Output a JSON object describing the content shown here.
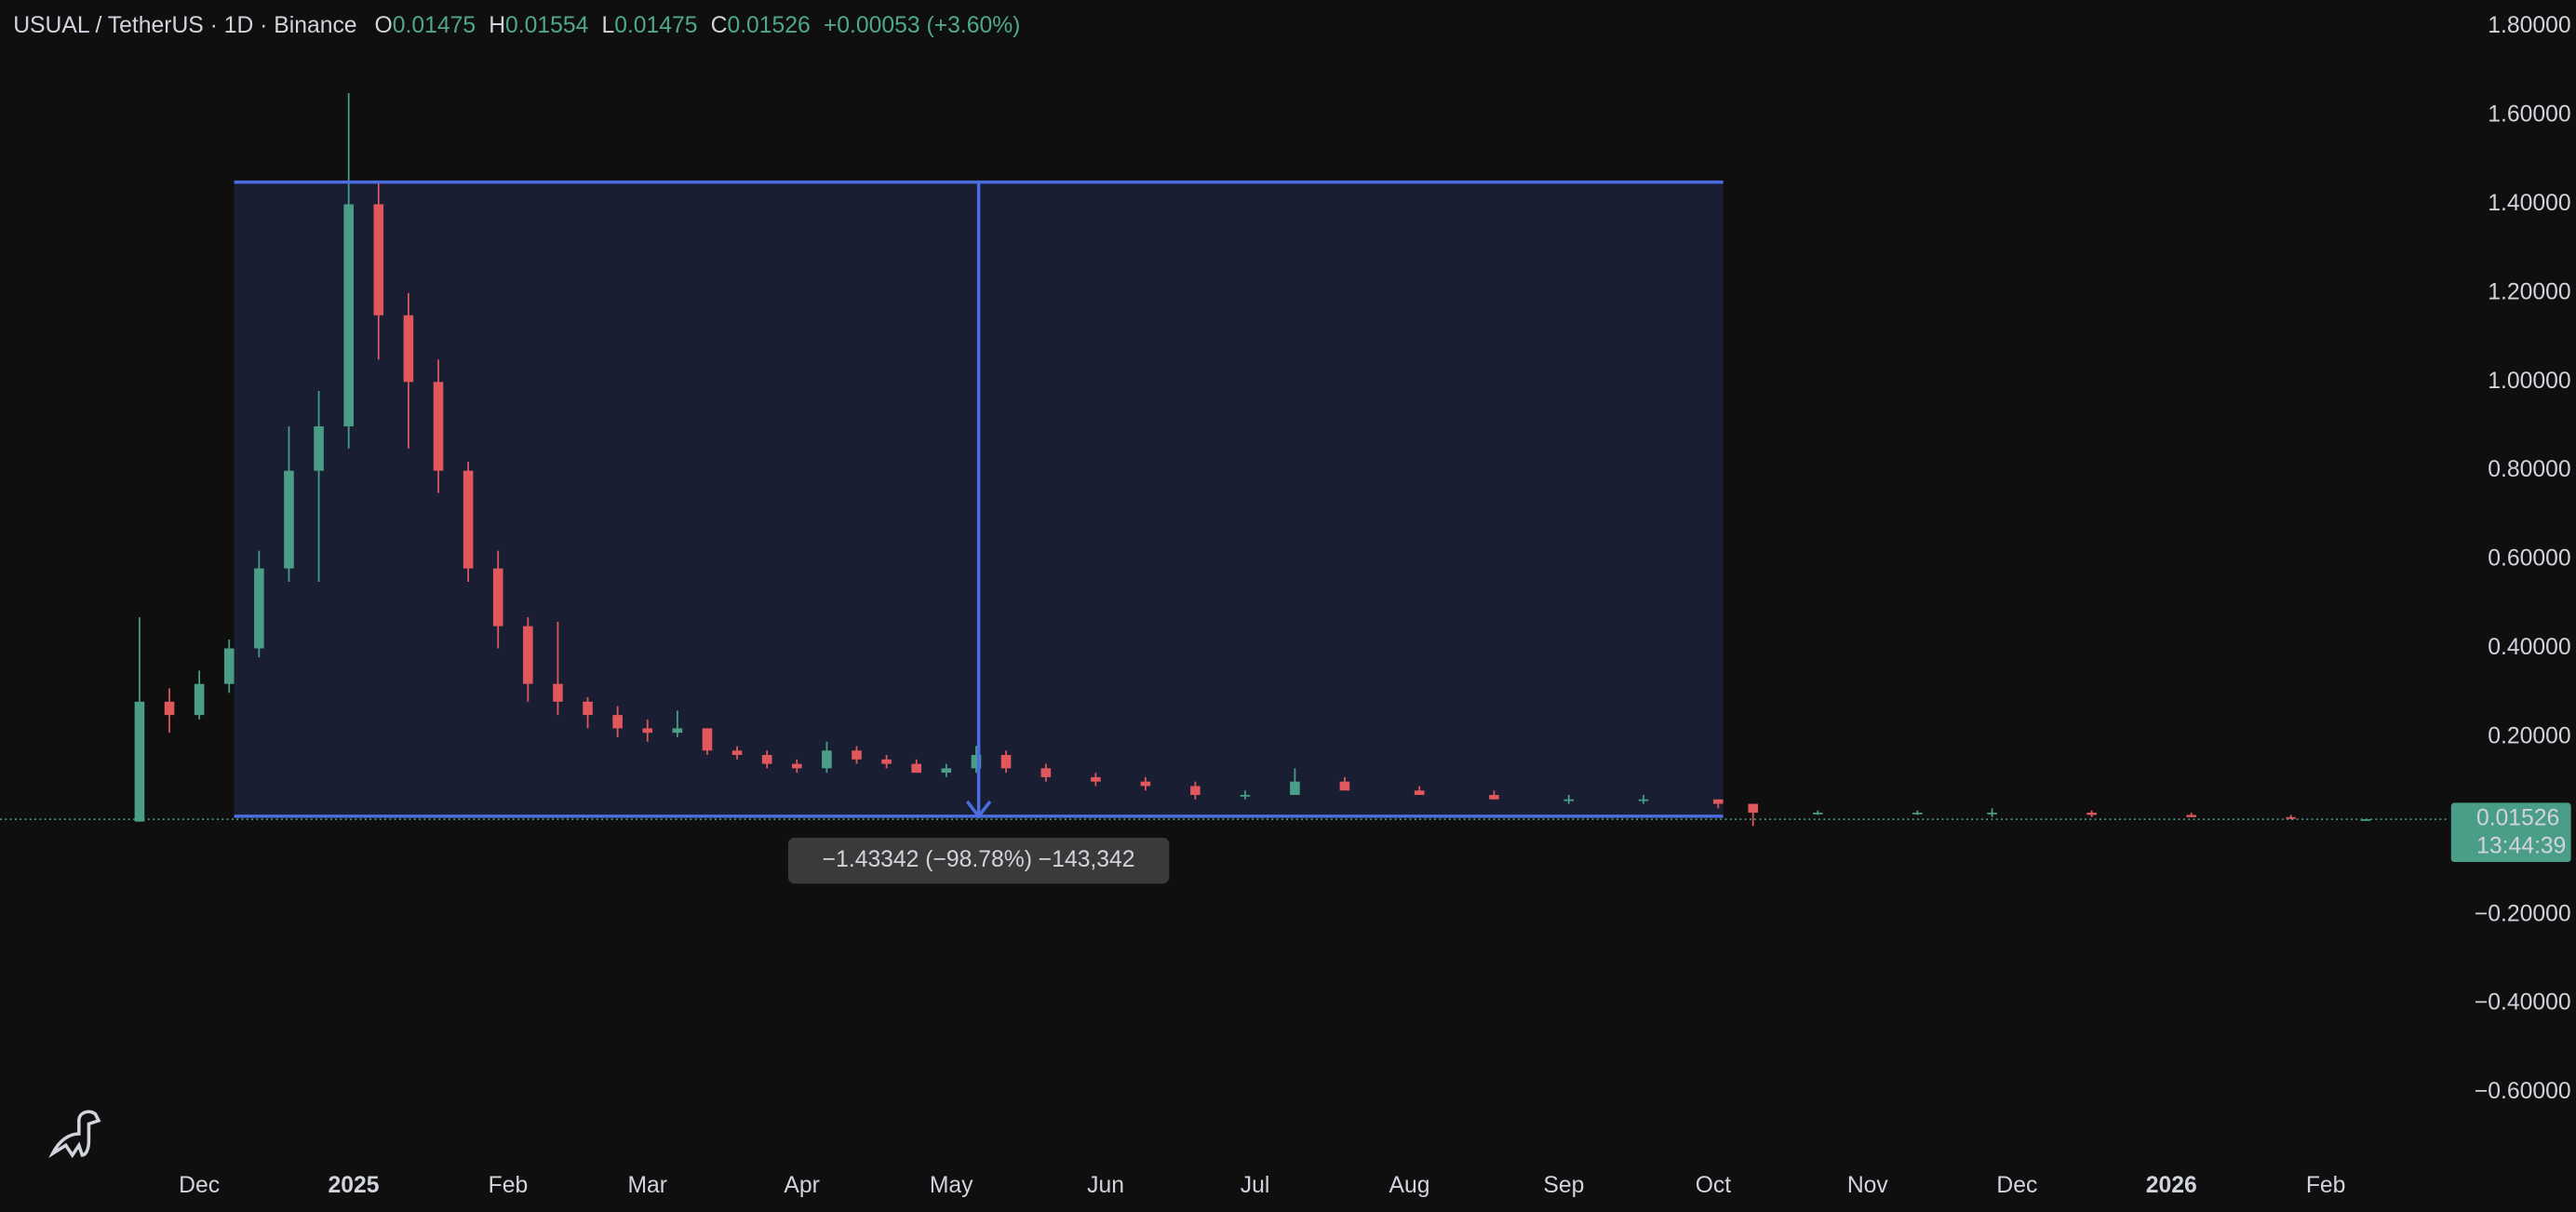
{
  "chart_data": {
    "type": "candlestick",
    "title": "USUAL / TetherUS · 1D · Binance",
    "header": {
      "open_label": "O",
      "open": "0.01475",
      "high_label": "H",
      "high": "0.01554",
      "low_label": "L",
      "low": "0.01475",
      "close_label": "C",
      "close": "0.01526",
      "change": "+0.00053 (+3.60%)"
    },
    "x": [
      -12,
      -6,
      0,
      6,
      12,
      18,
      24,
      30,
      36,
      42,
      48,
      54,
      60,
      66,
      72,
      78,
      84,
      90,
      96,
      102,
      108,
      114,
      120,
      126,
      132,
      138,
      144,
      150,
      156,
      162,
      170,
      180,
      190,
      200,
      210,
      220,
      230,
      245,
      260,
      275,
      290,
      305,
      312,
      325,
      345,
      360,
      380,
      400,
      420,
      435
    ],
    "open": [
      0.01,
      0.28,
      0.25,
      0.32,
      0.4,
      0.58,
      0.8,
      0.9,
      1.4,
      1.15,
      1.0,
      0.8,
      0.58,
      0.45,
      0.32,
      0.28,
      0.25,
      0.22,
      0.21,
      0.22,
      0.17,
      0.16,
      0.14,
      0.13,
      0.17,
      0.15,
      0.14,
      0.12,
      0.13,
      0.16,
      0.13,
      0.11,
      0.1,
      0.09,
      0.07,
      0.07,
      0.1,
      0.08,
      0.07,
      0.06,
      0.06,
      0.06,
      0.05,
      0.03,
      0.03,
      0.03,
      0.03,
      0.025,
      0.02,
      0.01475
    ],
    "high": [
      0.47,
      0.31,
      0.35,
      0.42,
      0.62,
      0.9,
      0.98,
      1.65,
      1.45,
      1.2,
      1.05,
      0.82,
      0.62,
      0.47,
      0.46,
      0.29,
      0.27,
      0.24,
      0.26,
      0.22,
      0.18,
      0.17,
      0.15,
      0.19,
      0.18,
      0.16,
      0.15,
      0.14,
      0.18,
      0.17,
      0.14,
      0.12,
      0.11,
      0.1,
      0.08,
      0.13,
      0.11,
      0.09,
      0.08,
      0.07,
      0.07,
      0.06,
      0.05,
      0.035,
      0.035,
      0.04,
      0.035,
      0.03,
      0.025,
      0.01554
    ],
    "low": [
      0.01,
      0.21,
      0.24,
      0.3,
      0.38,
      0.55,
      0.55,
      0.85,
      1.05,
      0.85,
      0.75,
      0.55,
      0.4,
      0.28,
      0.25,
      0.22,
      0.2,
      0.19,
      0.2,
      0.16,
      0.15,
      0.13,
      0.12,
      0.12,
      0.14,
      0.13,
      0.12,
      0.11,
      0.12,
      0.12,
      0.1,
      0.09,
      0.08,
      0.06,
      0.06,
      0.07,
      0.08,
      0.07,
      0.06,
      0.05,
      0.05,
      0.04,
      0.0,
      0.025,
      0.025,
      0.02,
      0.02,
      0.02,
      0.015,
      0.01475
    ],
    "close": [
      0.28,
      0.25,
      0.32,
      0.4,
      0.58,
      0.8,
      0.9,
      1.4,
      1.15,
      1.0,
      0.8,
      0.58,
      0.45,
      0.32,
      0.28,
      0.25,
      0.22,
      0.21,
      0.22,
      0.17,
      0.16,
      0.14,
      0.13,
      0.17,
      0.15,
      0.14,
      0.12,
      0.13,
      0.16,
      0.13,
      0.11,
      0.1,
      0.09,
      0.07,
      0.07,
      0.1,
      0.08,
      0.07,
      0.06,
      0.06,
      0.06,
      0.05,
      0.03,
      0.03,
      0.03,
      0.03,
      0.025,
      0.02,
      0.018,
      0.01526
    ],
    "up_color": "#4a9d86",
    "down_color": "#e0575c",
    "xlim": [
      -40,
      451.5
    ],
    "xticks": [
      {
        "value": 0,
        "label": "Dec"
      },
      {
        "value": 31,
        "label": "2025"
      },
      {
        "value": 62,
        "label": "Feb"
      },
      {
        "value": 90,
        "label": "Mar"
      },
      {
        "value": 121,
        "label": "Apr"
      },
      {
        "value": 151,
        "label": "May"
      },
      {
        "value": 182,
        "label": "Jun"
      },
      {
        "value": 212,
        "label": "Jul"
      },
      {
        "value": 243,
        "label": "Aug"
      },
      {
        "value": 274,
        "label": "Sep"
      },
      {
        "value": 304,
        "label": "Oct"
      },
      {
        "value": 335,
        "label": "Nov"
      },
      {
        "value": 365,
        "label": "Dec"
      },
      {
        "value": 396,
        "label": "2026"
      },
      {
        "value": 427,
        "label": "Feb"
      }
    ],
    "ylim": [
      -0.73,
      1.86
    ],
    "yticks": [
      {
        "value": 1.8,
        "label": "1.80000"
      },
      {
        "value": 1.6,
        "label": "1.60000"
      },
      {
        "value": 1.4,
        "label": "1.40000"
      },
      {
        "value": 1.2,
        "label": "1.20000"
      },
      {
        "value": 1.0,
        "label": "1.00000"
      },
      {
        "value": 0.8,
        "label": "0.80000"
      },
      {
        "value": 0.6,
        "label": "0.60000"
      },
      {
        "value": 0.4,
        "label": "0.40000"
      },
      {
        "value": 0.2,
        "label": "0.20000"
      },
      {
        "value": -0.2,
        "label": "−0.20000"
      },
      {
        "value": -0.4,
        "label": "−0.40000"
      },
      {
        "value": -0.6,
        "label": "−0.60000"
      }
    ],
    "last_price": {
      "value": 0.01526,
      "label": "0.01526",
      "countdown": "13:44:39"
    },
    "measure": {
      "x0": 7,
      "x1": 306,
      "top": 1.45,
      "bottom": 0.022,
      "label": "−1.43342 (−98.78%) −143,342"
    }
  }
}
